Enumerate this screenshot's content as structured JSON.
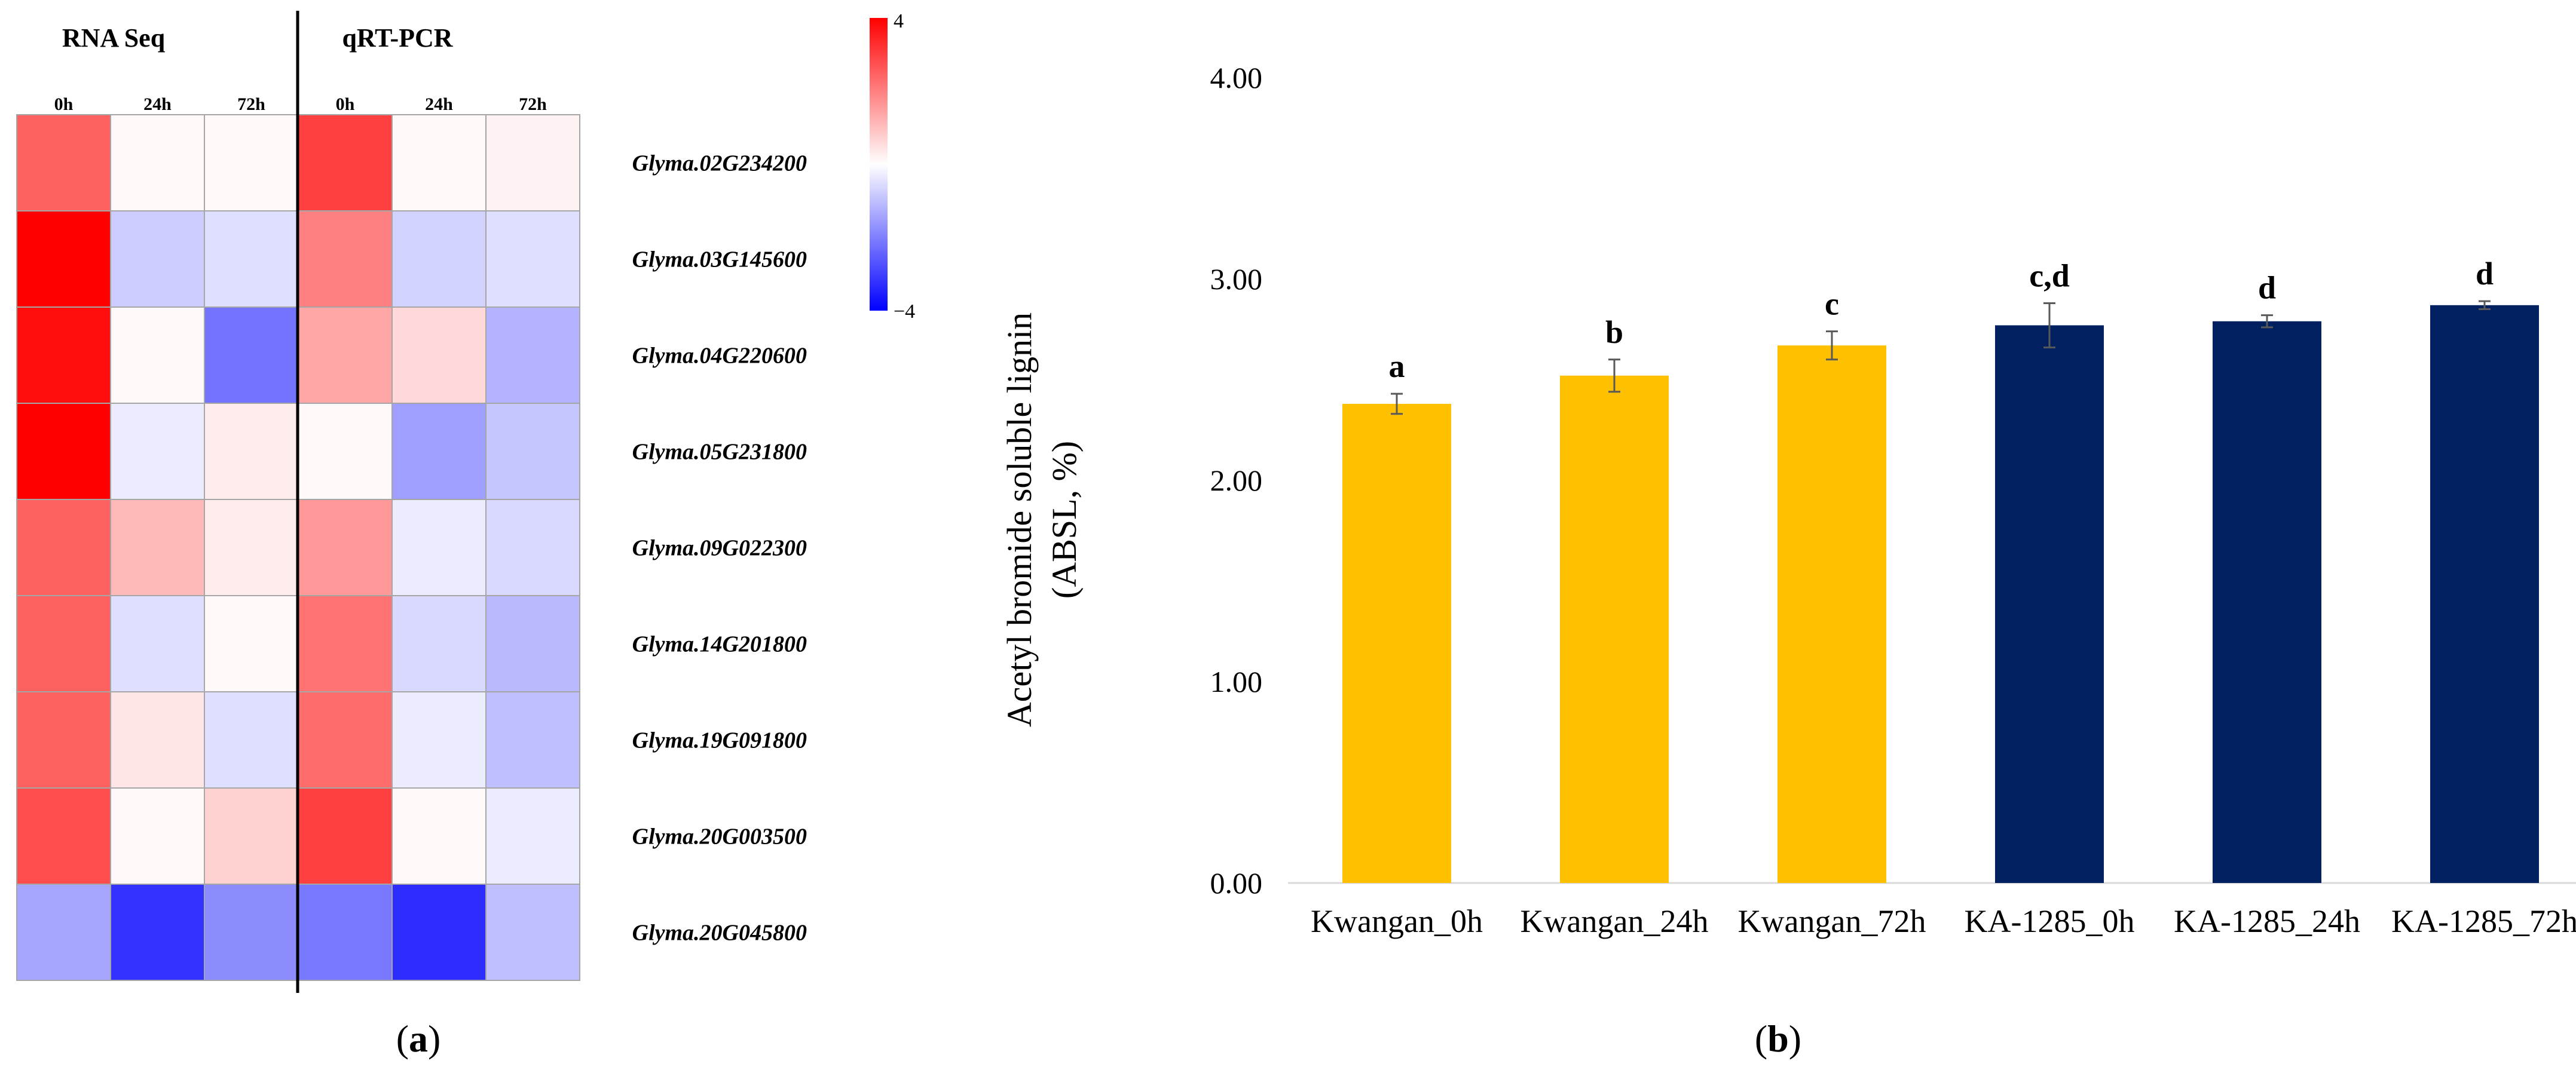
{
  "colors": {
    "positive": "#ff0000",
    "negative": "#0000ff",
    "kwangan": "#ffc000",
    "ka1285": "#002060",
    "grid_border": "#a6a6a6"
  },
  "panel_labels": {
    "a": "a",
    "b": "b"
  },
  "chart_data": [
    {
      "type": "heatmap",
      "panel": "a",
      "group_labels": [
        "RNA Seq",
        "qRT-PCR"
      ],
      "columns": [
        "0h",
        "24h",
        "72h",
        "0h",
        "24h",
        "72h"
      ],
      "rows": [
        "Glyma.02G234200",
        "Glyma.03G145600",
        "Glyma.04G220600",
        "Glyma.05G231800",
        "Glyma.09G022300",
        "Glyma.14G201800",
        "Glyma.19G091800",
        "Glyma.20G003500",
        "Glyma.20G045800"
      ],
      "values": [
        [
          2.5,
          0.1,
          0.1,
          3.0,
          0.1,
          0.2
        ],
        [
          4.0,
          -0.8,
          -0.5,
          2.0,
          -0.7,
          -0.5
        ],
        [
          3.8,
          0.1,
          -2.2,
          1.4,
          0.6,
          -1.2
        ],
        [
          4.0,
          -0.3,
          0.3,
          0.1,
          -1.5,
          -0.9
        ],
        [
          2.5,
          1.1,
          0.3,
          1.6,
          -0.3,
          -0.6
        ],
        [
          2.5,
          -0.5,
          0.1,
          2.2,
          -0.6,
          -1.1
        ],
        [
          2.5,
          0.4,
          -0.5,
          2.3,
          -0.3,
          -1.0
        ],
        [
          2.8,
          0.1,
          0.7,
          3.0,
          0.1,
          -0.3
        ],
        [
          -1.4,
          -3.2,
          -1.8,
          -2.1,
          -3.3,
          -1.0
        ]
      ],
      "colorbar": {
        "max_label": "4",
        "min_label": "−4",
        "range": [
          -4,
          4
        ]
      }
    },
    {
      "type": "bar",
      "panel": "b",
      "categories": [
        "Kwangan_0h",
        "Kwangan_24h",
        "Kwangan_72h",
        "KA-1285_0h",
        "KA-1285_24h",
        "KA-1285_72h"
      ],
      "values": [
        2.38,
        2.52,
        2.67,
        2.77,
        2.79,
        2.87
      ],
      "errors": [
        0.05,
        0.08,
        0.07,
        0.11,
        0.03,
        0.02
      ],
      "letters": [
        "a",
        "b",
        "c",
        "c,d",
        "d",
        "d"
      ],
      "groups": [
        "Kwangan",
        "Kwangan",
        "Kwangan",
        "KA-1285",
        "KA-1285",
        "KA-1285"
      ],
      "ylabel_line1": "Acetyl bromide soluble lignin",
      "ylabel_line2": "(ABSL, %)",
      "ylim": [
        0,
        4
      ],
      "yticks": [
        {
          "value": 0,
          "label": "0.00"
        },
        {
          "value": 1,
          "label": "1.00"
        },
        {
          "value": 2,
          "label": "2.00"
        },
        {
          "value": 3,
          "label": "3.00"
        },
        {
          "value": 4,
          "label": "4.00"
        }
      ]
    }
  ]
}
